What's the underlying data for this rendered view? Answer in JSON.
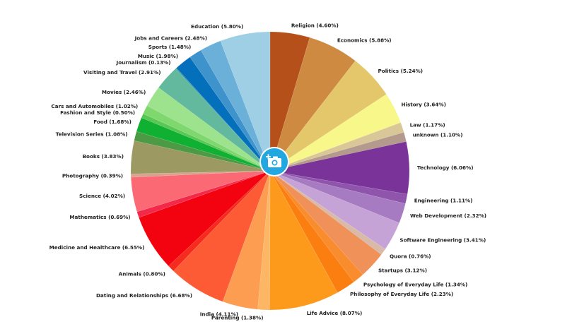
{
  "chart_data": {
    "type": "pie",
    "slices": [
      {
        "label": "Religion (4.60%)",
        "value": 4.6,
        "color": "#b5501b"
      },
      {
        "label": "Economics (5.88%)",
        "value": 5.88,
        "color": "#cf8a42"
      },
      {
        "label": "Politics (5.24%)",
        "value": 5.24,
        "color": "#e4c76a"
      },
      {
        "label": "History (3.64%)",
        "value": 3.64,
        "color": "#f7f78a"
      },
      {
        "label": "Law (1.17%)",
        "value": 1.17,
        "color": "#d9c797"
      },
      {
        "label": "unknown (1.10%)",
        "value": 1.1,
        "color": "#b49a8c"
      },
      {
        "label": "Technology (6.06%)",
        "value": 6.06,
        "color": "#7a3399"
      },
      {
        "label": "Engineering (1.11%)",
        "value": 1.11,
        "color": "#8f55ac"
      },
      {
        "label": "Web Development (2.32%)",
        "value": 2.32,
        "color": "#a77bc2"
      },
      {
        "label": "Software Engineering (3.41%)",
        "value": 3.41,
        "color": "#c6a3d6"
      },
      {
        "label": "Quora (0.76%)",
        "value": 0.76,
        "color": "#d9b9a8"
      },
      {
        "label": "Startups (3.12%)",
        "value": 3.12,
        "color": "#ef9158"
      },
      {
        "label": "Psychology of Everyday Life (1.34%)",
        "value": 1.34,
        "color": "#f98c2c"
      },
      {
        "label": "Philosophy of Everyday Life (2.23%)",
        "value": 2.23,
        "color": "#fb7f10"
      },
      {
        "label": "Life Advice (8.07%)",
        "value": 8.07,
        "color": "#fd9a1c"
      },
      {
        "label": "Parenting (1.38%)",
        "value": 1.38,
        "color": "#fdb663"
      },
      {
        "label": "India (4.11%)",
        "value": 4.11,
        "color": "#fc9d52"
      },
      {
        "label": "Dating and Relationships (6.68%)",
        "value": 6.68,
        "color": "#fc5b36"
      },
      {
        "label": "Animals (0.80%)",
        "value": 0.8,
        "color": "#f52b1e"
      },
      {
        "label": "Medicine and Healthcare (6.55%)",
        "value": 6.55,
        "color": "#f3020f"
      },
      {
        "label": "Mathematics (0.69%)",
        "value": 0.69,
        "color": "#f4294a"
      },
      {
        "label": "Science (4.02%)",
        "value": 4.02,
        "color": "#fb6a74"
      },
      {
        "label": "Photography (0.39%)",
        "value": 0.39,
        "color": "#d8a38e"
      },
      {
        "label": "Books (3.83%)",
        "value": 3.83,
        "color": "#9c9963"
      },
      {
        "label": "Television Series (1.08%)",
        "value": 1.08,
        "color": "#4c9a44"
      },
      {
        "label": "Food (1.68%)",
        "value": 1.68,
        "color": "#10b132"
      },
      {
        "label": "Fashion and Style (0.50%)",
        "value": 0.5,
        "color": "#58c754"
      },
      {
        "label": "Cars and Automobiles (1.02%)",
        "value": 1.02,
        "color": "#7fd86e"
      },
      {
        "label": "Movies (2.46%)",
        "value": 2.46,
        "color": "#9de28c"
      },
      {
        "label": "Visiting and Travel (2.91%)",
        "value": 2.91,
        "color": "#62b99d"
      },
      {
        "label": "Journalism (0.13%)",
        "value": 0.13,
        "color": "#3a9ba3"
      },
      {
        "label": "Music (1.98%)",
        "value": 1.98,
        "color": "#0470bc"
      },
      {
        "label": "Sports (1.48%)",
        "value": 1.48,
        "color": "#3f93cc"
      },
      {
        "label": "Jobs and Careers (2.48%)",
        "value": 2.48,
        "color": "#6bb0d9"
      },
      {
        "label": "Education (5.80%)",
        "value": 5.8,
        "color": "#9fcfe4"
      }
    ],
    "start_angle_deg": 90,
    "direction": "clockwise",
    "legend": "none"
  },
  "overlay": {
    "icon": "add-photo-camera-icon",
    "color": "#22a7e0"
  }
}
